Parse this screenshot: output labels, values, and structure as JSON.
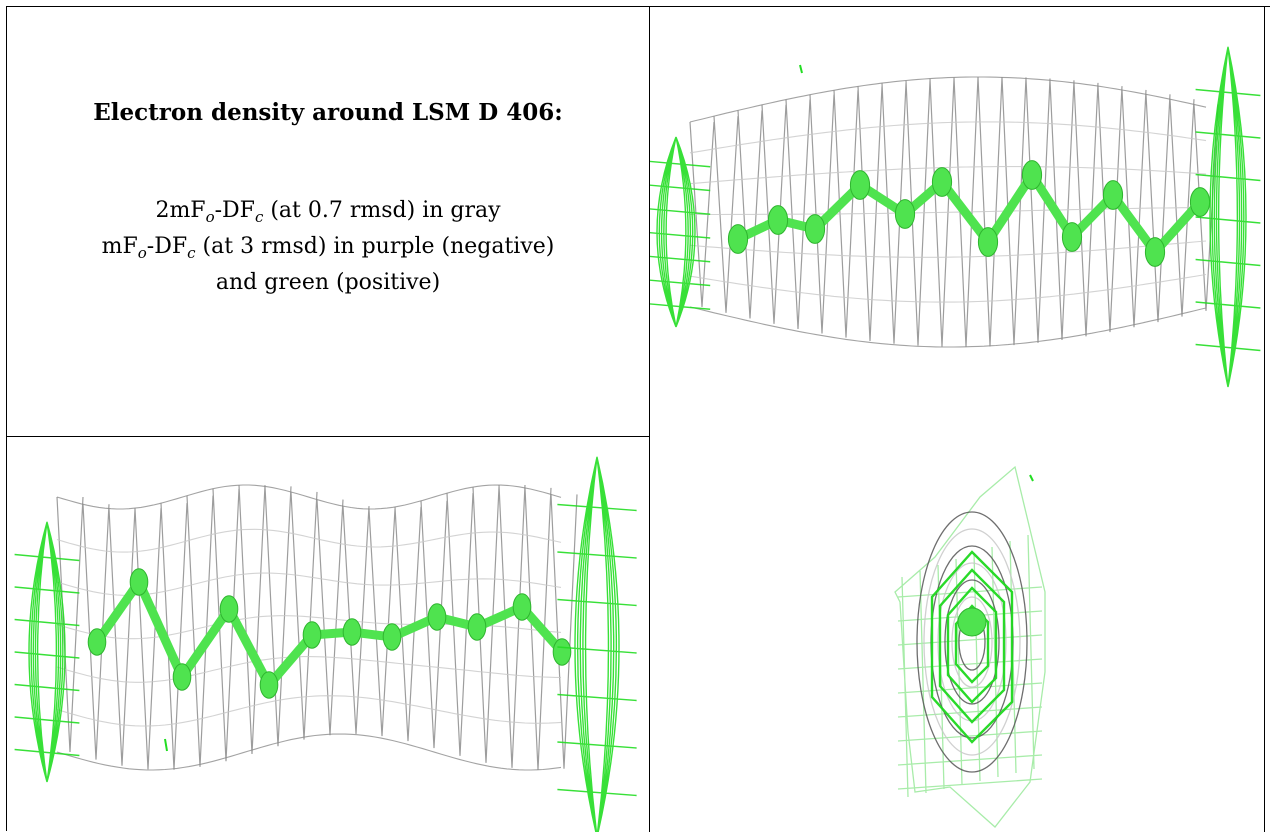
{
  "legend": {
    "title": "Electron density around LSM D 406:",
    "line1": {
      "prefix": "2mF",
      "sub1": "o",
      "mid": "-DF",
      "sub2": "c",
      "suffix": " (at 0.7 rmsd) in gray"
    },
    "line2": {
      "prefix": "mF",
      "sub1": "o",
      "mid": "-DF",
      "sub2": "c",
      "suffix": " (at 3 rmsd) in purple (negative)"
    },
    "line3": "and green (positive)"
  },
  "colors": {
    "gray_mesh": "#8c8c8c",
    "light_gray_mesh": "#c8c8c8",
    "green_mesh": "#22dd22",
    "green_atom": "#4fe34f",
    "border": "#000000"
  },
  "panels": [
    {
      "name": "view-top-right",
      "icon": "density-mesh-side-view"
    },
    {
      "name": "view-bottom-left",
      "icon": "density-mesh-side-view"
    },
    {
      "name": "view-bottom-right",
      "icon": "density-mesh-end-view"
    }
  ]
}
